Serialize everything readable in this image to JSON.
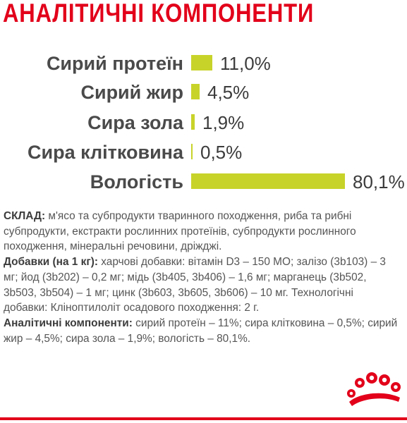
{
  "title": "АНАЛІТИЧНІ КОМПОНЕНТИ",
  "chart_data": {
    "type": "bar",
    "orientation": "horizontal",
    "categories": [
      "Сирий протеїн",
      "Сирий жир",
      "Сира зола",
      "Сира клітковина",
      "Вологість"
    ],
    "values": [
      11.0,
      4.5,
      1.9,
      0.5,
      80.1
    ],
    "value_labels": [
      "11,0%",
      "4,5%",
      "1,9%",
      "0,5%",
      "80,1%"
    ],
    "unit": "%",
    "colors": {
      "bar": "#c8d32a"
    }
  },
  "composition": {
    "sklad_label": "СКЛАД:",
    "sklad_text": " м'ясо та субпродукти тваринного походження, риба та рибні субпродукти, екстракти рослинних протеїнів, субпродукти рослинного походження, мінеральні речовини, дріжджі.",
    "additives_label": "Добавки (на 1 кг):",
    "additives_text": " харчові добавки: вітамін D3 – 150 МО; залізо (3b103) – 3 мг; йод (3b202) – 0,2 мг; мідь (3b405, 3b406) – 1,6 мг; марганець (3b502, 3b503, 3b504) – 1 мг; цинк (3b603, 3b605, 3b606) – 10 мг. Технологічні добавки: Кліноптилоліт осадового походження: 2 г.",
    "analytic_label": "Аналітичні компоненти:",
    "analytic_text": " сирий протеїн – 11%; сира клітковина – 0,5%; сирий жир – 4,5%; сира зола – 1,9%; вологість – 80,1%."
  },
  "colors": {
    "brand_red": "#e2001a",
    "bar": "#c8d32a",
    "label_text": "#4a4a4a"
  },
  "logo": {
    "icon": "royal-canin-crown-icon"
  }
}
